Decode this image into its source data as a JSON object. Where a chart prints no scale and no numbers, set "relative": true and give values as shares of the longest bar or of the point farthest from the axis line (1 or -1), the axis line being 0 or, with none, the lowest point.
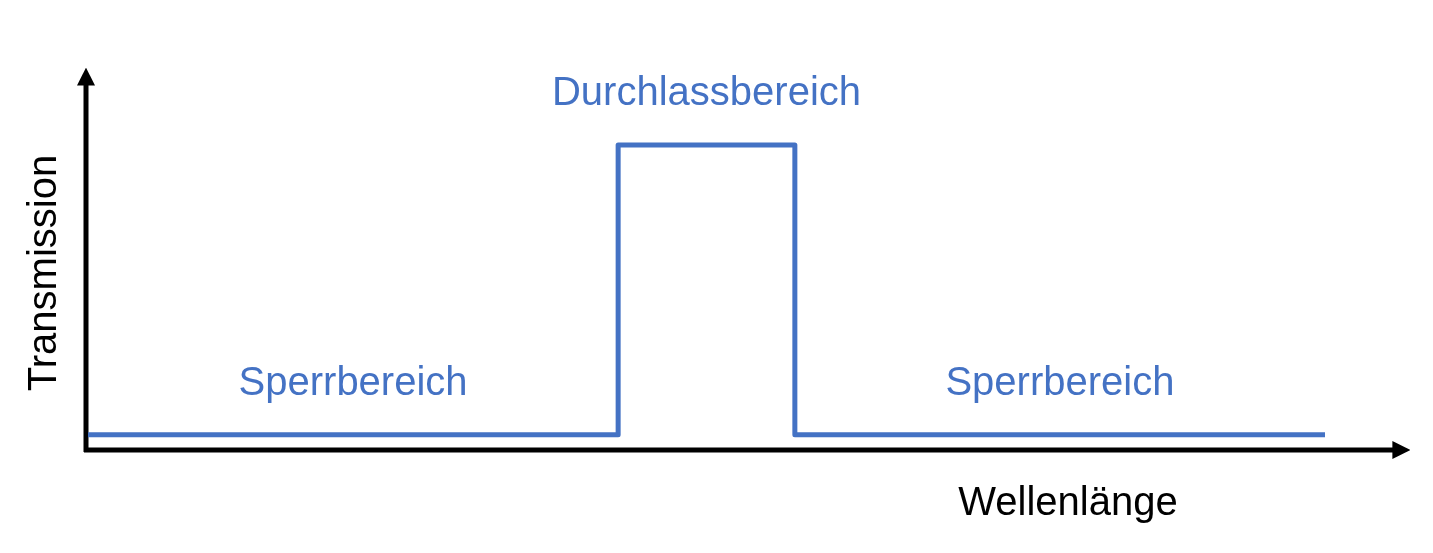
{
  "chart_data": {
    "type": "step",
    "xlabel": "Wellenlänge",
    "ylabel": "Transmission",
    "relative": true,
    "categories": [
      null,
      null,
      null,
      null,
      null,
      null,
      null,
      null
    ],
    "values": [
      0.05,
      0.05,
      0.05,
      1,
      0.05,
      0.05,
      0.05,
      0.05
    ],
    "color": "#4472c4",
    "annotations": [
      "Sperrbereich",
      "Durchlassbereich",
      "Sperrbereich"
    ]
  }
}
